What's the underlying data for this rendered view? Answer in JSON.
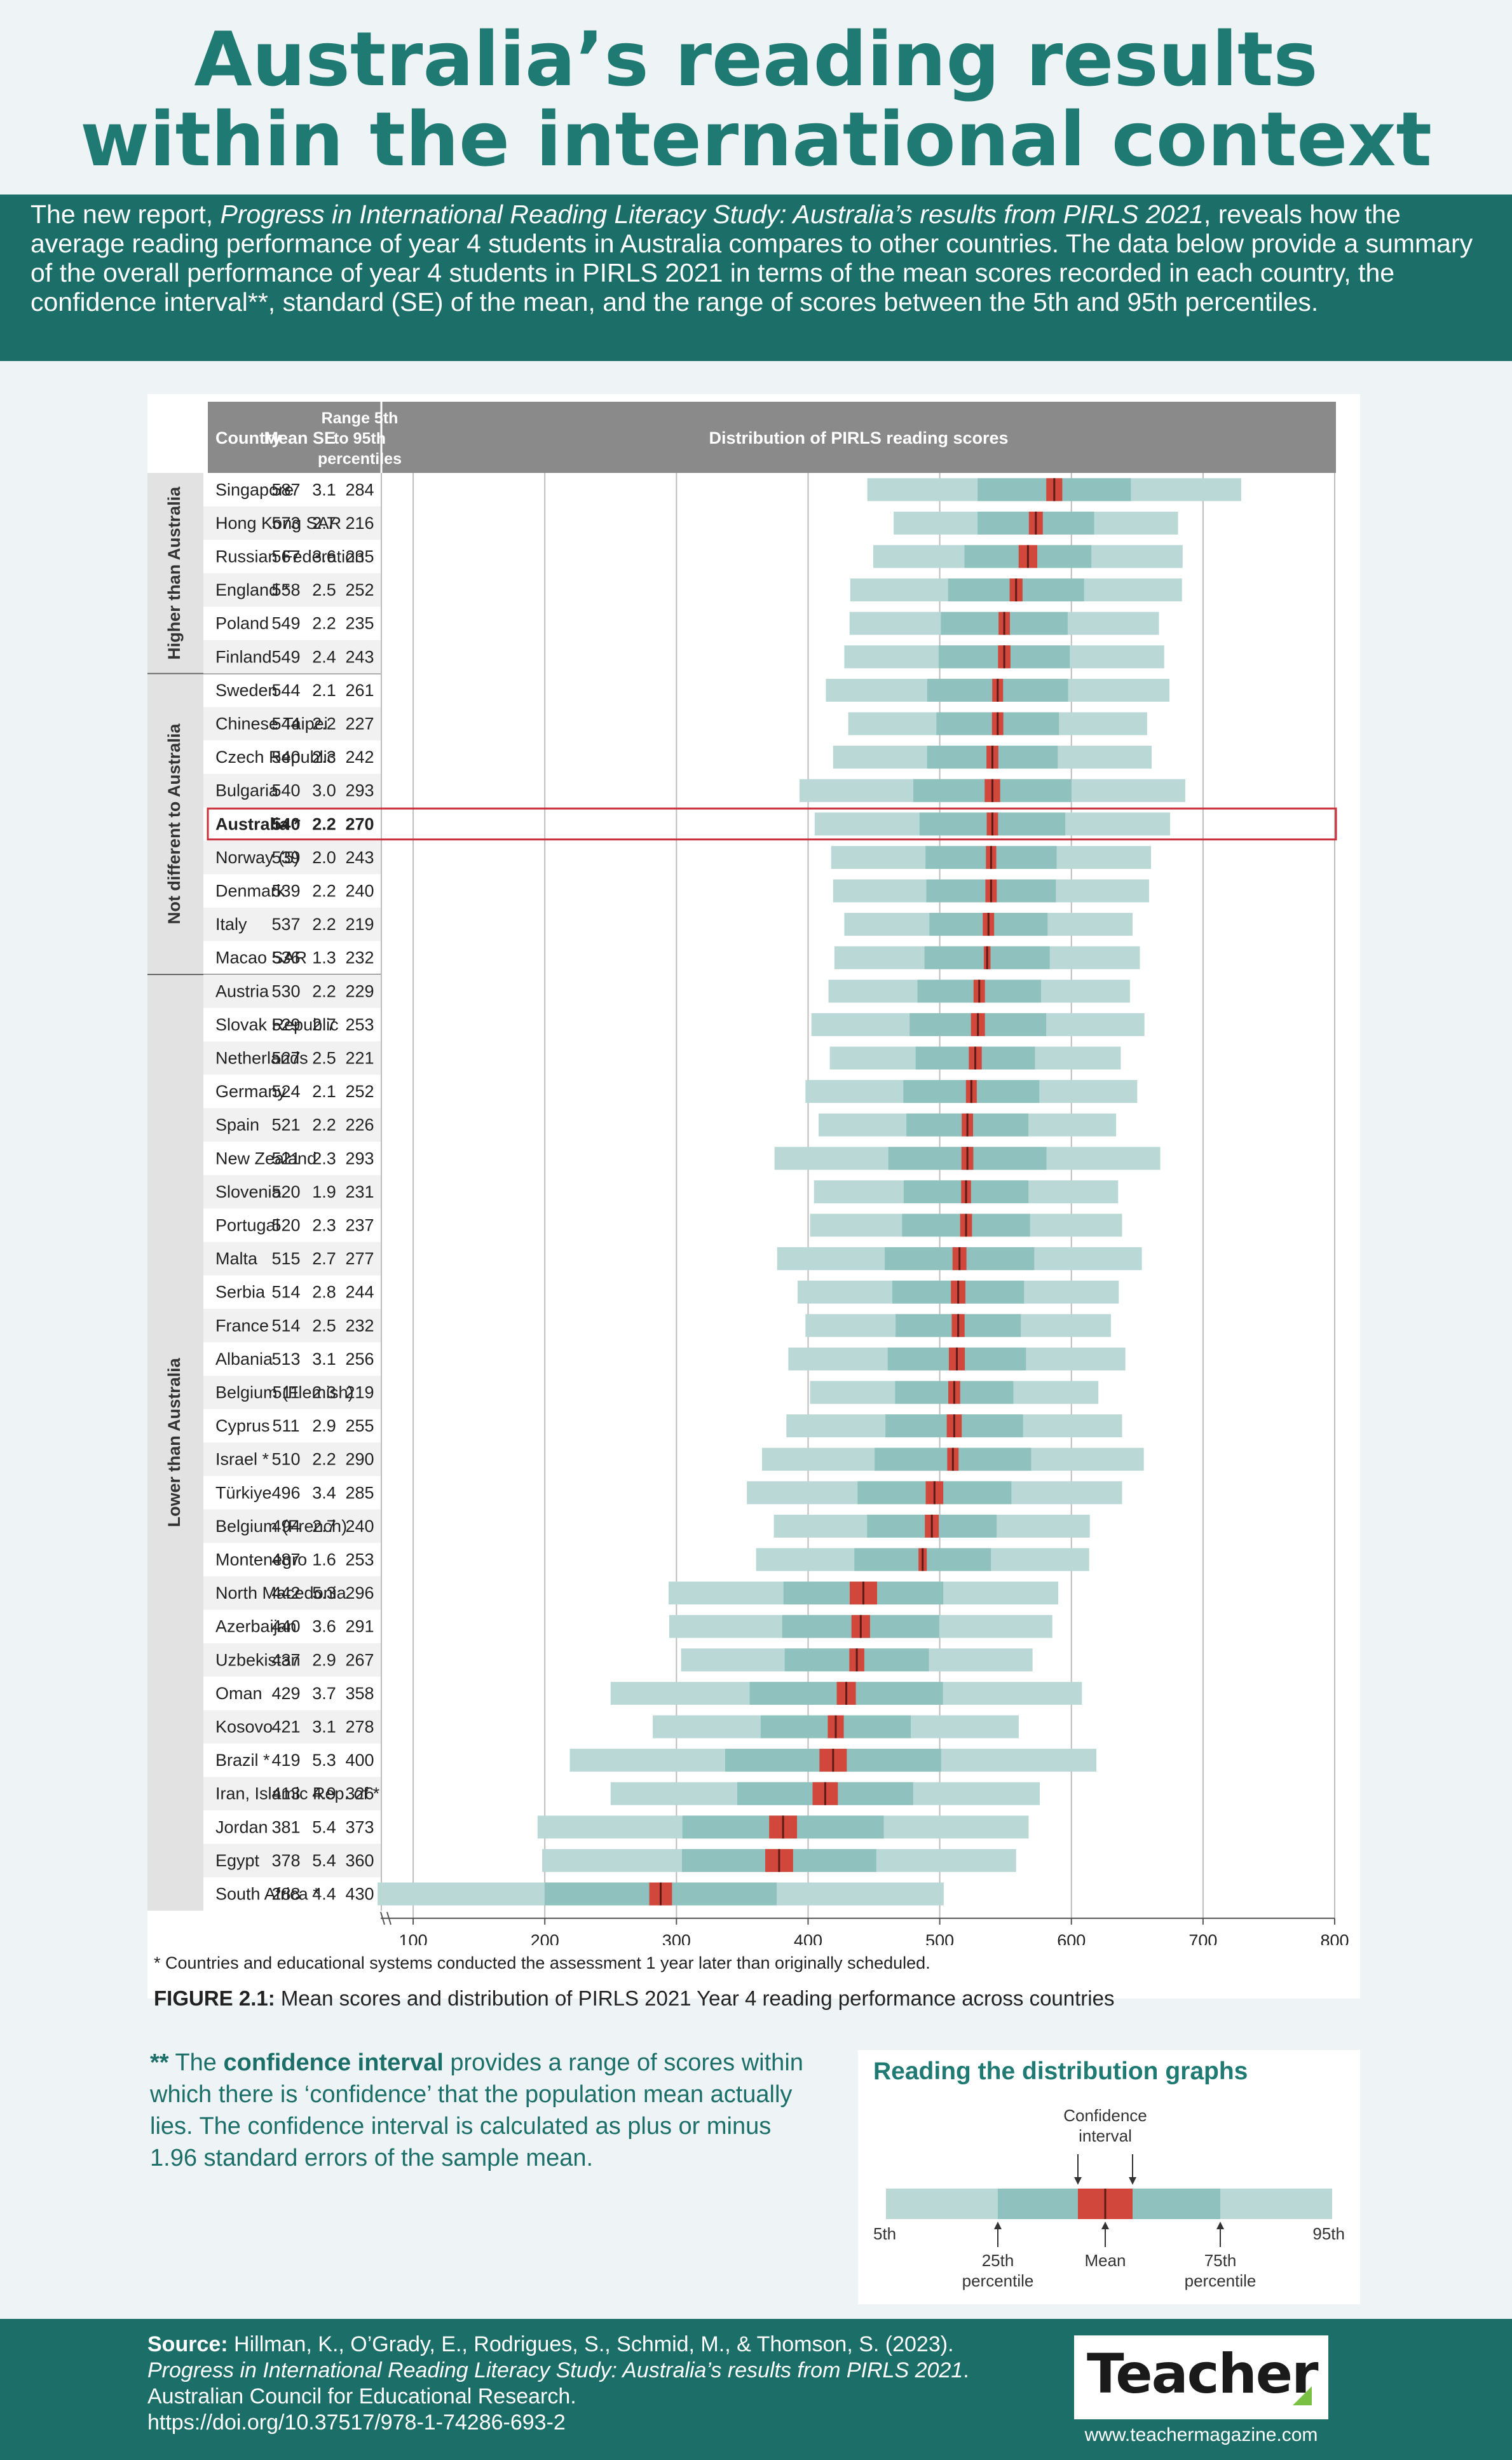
{
  "title_line1": "Australia’s reading results",
  "title_line2": "within the international context",
  "intro": {
    "p1": "The new report, ",
    "report_title": "Progress in International Reading Literacy Study: Australia’s results from PIRLS 2021",
    "p2": ", reveals how the average reading performance of year 4 students in Australia compares to other countries. The data below provide a summary of the overall performance of year 4 students in PIRLS 2021 in terms of the mean scores recorded in each country, the confidence interval**, standard (SE) of the mean, and the range of scores between the 5th and 95th percentiles."
  },
  "table_headers": {
    "country": "Country",
    "mean": "Mean",
    "se": "SE",
    "range_l1": "Range 5th",
    "range_l2": "to 95th",
    "range_l3": "percentiles",
    "dist": "Distribution of PIRLS reading scores"
  },
  "groups": [
    {
      "label": "Higher than Australia",
      "start": 0,
      "end": 5
    },
    {
      "label": "Not different to Australia",
      "start": 6,
      "end": 14
    },
    {
      "label": "Lower than Australia",
      "start": 15,
      "end": 42
    }
  ],
  "highlight_country": "Australia *",
  "colors": {
    "outer": "#b9d8d6",
    "inner": "#8fc2be",
    "ci": "#d2473b",
    "highlight_border": "#c8303a",
    "header_bg": "#8a8a8a",
    "group_bg": "#e2e2e2"
  },
  "chart_data": {
    "type": "table",
    "x_ticks": [
      100,
      200,
      300,
      400,
      500,
      600,
      700,
      800
    ],
    "xlim": [
      85,
      800
    ],
    "rows": [
      {
        "country": "Singapore",
        "mean": 587,
        "se": 3.1,
        "range": 284
      },
      {
        "country": "Hong Kong SAR",
        "mean": 573,
        "se": 2.7,
        "range": 216
      },
      {
        "country": "Russian Federation",
        "mean": 567,
        "se": 3.6,
        "range": 235
      },
      {
        "country": "England *",
        "mean": 558,
        "se": 2.5,
        "range": 252
      },
      {
        "country": "Poland",
        "mean": 549,
        "se": 2.2,
        "range": 235
      },
      {
        "country": "Finland",
        "mean": 549,
        "se": 2.4,
        "range": 243
      },
      {
        "country": "Sweden",
        "mean": 544,
        "se": 2.1,
        "range": 261
      },
      {
        "country": "Chinese Taipei",
        "mean": 544,
        "se": 2.2,
        "range": 227
      },
      {
        "country": "Czech Republic",
        "mean": 540,
        "se": 2.3,
        "range": 242
      },
      {
        "country": "Bulgaria",
        "mean": 540,
        "se": 3.0,
        "range": 293
      },
      {
        "country": "Australia *",
        "mean": 540,
        "se": 2.2,
        "range": 270
      },
      {
        "country": "Norway (5)",
        "mean": 539,
        "se": 2.0,
        "range": 243
      },
      {
        "country": "Denmark",
        "mean": 539,
        "se": 2.2,
        "range": 240
      },
      {
        "country": "Italy",
        "mean": 537,
        "se": 2.2,
        "range": 219
      },
      {
        "country": "Macao SAR",
        "mean": 536,
        "se": 1.3,
        "range": 232
      },
      {
        "country": "Austria",
        "mean": 530,
        "se": 2.2,
        "range": 229
      },
      {
        "country": "Slovak Republic",
        "mean": 529,
        "se": 2.7,
        "range": 253
      },
      {
        "country": "Netherlands",
        "mean": 527,
        "se": 2.5,
        "range": 221
      },
      {
        "country": "Germany",
        "mean": 524,
        "se": 2.1,
        "range": 252
      },
      {
        "country": "Spain",
        "mean": 521,
        "se": 2.2,
        "range": 226
      },
      {
        "country": "New Zealand",
        "mean": 521,
        "se": 2.3,
        "range": 293
      },
      {
        "country": "Slovenia",
        "mean": 520,
        "se": 1.9,
        "range": 231
      },
      {
        "country": "Portugal",
        "mean": 520,
        "se": 2.3,
        "range": 237
      },
      {
        "country": "Malta",
        "mean": 515,
        "se": 2.7,
        "range": 277
      },
      {
        "country": "Serbia",
        "mean": 514,
        "se": 2.8,
        "range": 244
      },
      {
        "country": "France",
        "mean": 514,
        "se": 2.5,
        "range": 232
      },
      {
        "country": "Albania",
        "mean": 513,
        "se": 3.1,
        "range": 256
      },
      {
        "country": "Belgium (Flemish)",
        "mean": 511,
        "se": 2.3,
        "range": 219
      },
      {
        "country": "Cyprus",
        "mean": 511,
        "se": 2.9,
        "range": 255
      },
      {
        "country": "Israel *",
        "mean": 510,
        "se": 2.2,
        "range": 290
      },
      {
        "country": "Türkiye",
        "mean": 496,
        "se": 3.4,
        "range": 285
      },
      {
        "country": "Belgium (French)",
        "mean": 494,
        "se": 2.7,
        "range": 240
      },
      {
        "country": "Montenegro",
        "mean": 487,
        "se": 1.6,
        "range": 253
      },
      {
        "country": "North Macedonia",
        "mean": 442,
        "se": 5.3,
        "range": 296
      },
      {
        "country": "Azerbaijan",
        "mean": 440,
        "se": 3.6,
        "range": 291
      },
      {
        "country": "Uzbekistan",
        "mean": 437,
        "se": 2.9,
        "range": 267
      },
      {
        "country": "Oman",
        "mean": 429,
        "se": 3.7,
        "range": 358
      },
      {
        "country": "Kosovo",
        "mean": 421,
        "se": 3.1,
        "range": 278
      },
      {
        "country": "Brazil *",
        "mean": 419,
        "se": 5.3,
        "range": 400
      },
      {
        "country": "Iran, Islamic Rep. of *",
        "mean": 413,
        "se": 4.9,
        "range": 326
      },
      {
        "country": "Jordan",
        "mean": 381,
        "se": 5.4,
        "range": 373
      },
      {
        "country": "Egypt",
        "mean": 378,
        "se": 5.4,
        "range": 360
      },
      {
        "country": "South Africa *",
        "mean": 288,
        "se": 4.4,
        "range": 430
      }
    ]
  },
  "footnote": "* Countries and educational systems conducted the assessment 1 year later than originally scheduled.",
  "caption_label": "FIGURE 2.1:",
  "caption_text": "Mean scores and distribution of PIRLS 2021 Year 4 reading performance across countries",
  "ci_note": {
    "stars": "**",
    "t1": " The ",
    "bold": "confidence interval",
    "t2": " provides a range of scores within which there is ‘confidence’ that the population mean actually lies. The confidence interval is calculated as plus or minus 1.96 standard errors of the sample mean."
  },
  "guide": {
    "title": "Reading the distribution graphs",
    "ci_label_1": "Confidence",
    "ci_label_2": "interval",
    "p5": "5th",
    "p95": "95th",
    "p25_1": "25th",
    "p25_2": "percentile",
    "mean": "Mean",
    "p75_1": "75th",
    "p75_2": "percentile"
  },
  "source": {
    "label": "Source:",
    "t1": " Hillman, K., O’Grady, E., Rodrigues, S., Schmid, M., & Thomson, S. (2023). ",
    "italic": "Progress in International Reading Literacy Study: Australia’s results from PIRLS 2021",
    "t2": ". Australian Council for Educational Research.",
    "doi": "https://doi.org/10.37517/978-1-74286-693-2"
  },
  "logo": "Teacher",
  "site": "www.teachermagazine.com"
}
